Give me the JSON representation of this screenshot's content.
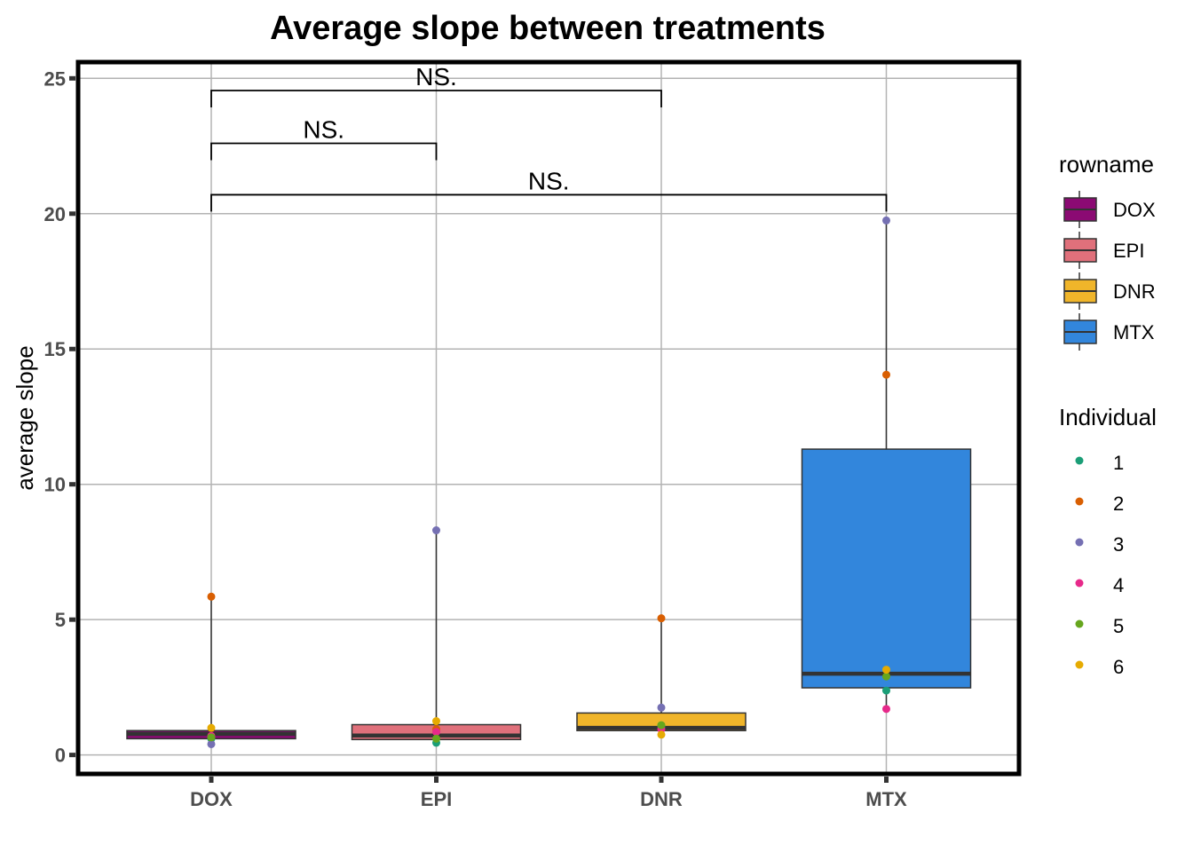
{
  "chart_data": {
    "type": "box",
    "title": "Average slope between treatments",
    "xlabel": "",
    "ylabel": "average slope",
    "ylim": [
      -0.7,
      25.6
    ],
    "yticks": [
      0,
      5,
      10,
      15,
      20,
      25
    ],
    "ytick_labels": [
      "0",
      "5",
      "10",
      "15",
      "20",
      "25"
    ],
    "categories": [
      "DOX",
      "EPI",
      "DNR",
      "MTX"
    ],
    "box_colors": [
      "#8b0a73",
      "#e0707b",
      "#f0b52a",
      "#3286dc"
    ],
    "boxes": [
      {
        "name": "DOX",
        "q1": 0.6,
        "median": 0.78,
        "q3": 0.9,
        "whisker_low": 0.4,
        "whisker_high": 5.85
      },
      {
        "name": "EPI",
        "q1": 0.57,
        "median": 0.72,
        "q3": 1.12,
        "whisker_low": 0.45,
        "whisker_high": 8.3
      },
      {
        "name": "DNR",
        "q1": 0.9,
        "median": 1.0,
        "q3": 1.55,
        "whisker_low": 0.75,
        "whisker_high": 5.05
      },
      {
        "name": "MTX",
        "q1": 2.48,
        "median": 3.0,
        "q3": 11.3,
        "whisker_low": 1.7,
        "whisker_high": 19.75
      }
    ],
    "individual_colors": [
      "#1b9e77",
      "#d95f02",
      "#7570b3",
      "#e7298a",
      "#66a61e",
      "#e6ab02"
    ],
    "points": [
      {
        "group": "DOX",
        "individual": "1",
        "value": 0.6
      },
      {
        "group": "DOX",
        "individual": "2",
        "value": 5.85
      },
      {
        "group": "DOX",
        "individual": "3",
        "value": 0.4
      },
      {
        "group": "DOX",
        "individual": "4",
        "value": 0.7
      },
      {
        "group": "DOX",
        "individual": "5",
        "value": 0.65
      },
      {
        "group": "DOX",
        "individual": "6",
        "value": 1.0
      },
      {
        "group": "EPI",
        "individual": "1",
        "value": 0.45
      },
      {
        "group": "EPI",
        "individual": "2",
        "value": 0.95
      },
      {
        "group": "EPI",
        "individual": "3",
        "value": 8.3
      },
      {
        "group": "EPI",
        "individual": "4",
        "value": 0.85
      },
      {
        "group": "EPI",
        "individual": "5",
        "value": 0.6
      },
      {
        "group": "EPI",
        "individual": "6",
        "value": 1.25
      },
      {
        "group": "DNR",
        "individual": "1",
        "value": 1.05
      },
      {
        "group": "DNR",
        "individual": "2",
        "value": 5.05
      },
      {
        "group": "DNR",
        "individual": "3",
        "value": 1.75
      },
      {
        "group": "DNR",
        "individual": "4",
        "value": 0.95
      },
      {
        "group": "DNR",
        "individual": "5",
        "value": 1.1
      },
      {
        "group": "DNR",
        "individual": "6",
        "value": 0.75
      },
      {
        "group": "MTX",
        "individual": "1",
        "value": 2.38
      },
      {
        "group": "MTX",
        "individual": "2",
        "value": 14.05
      },
      {
        "group": "MTX",
        "individual": "3",
        "value": 19.75
      },
      {
        "group": "MTX",
        "individual": "4",
        "value": 1.7
      },
      {
        "group": "MTX",
        "individual": "5",
        "value": 2.9
      },
      {
        "group": "MTX",
        "individual": "6",
        "value": 3.15
      }
    ],
    "comparisons": [
      {
        "from": "DOX",
        "to": "DNR",
        "y": 24.55,
        "label": "NS."
      },
      {
        "from": "DOX",
        "to": "EPI",
        "y": 22.6,
        "label": "NS."
      },
      {
        "from": "DOX",
        "to": "MTX",
        "y": 20.7,
        "label": "NS."
      }
    ],
    "legend_fill": {
      "title": "rowname",
      "entries": [
        "DOX",
        "EPI",
        "DNR",
        "MTX"
      ]
    },
    "legend_points": {
      "title": "Individual",
      "entries": [
        "1",
        "2",
        "3",
        "4",
        "5",
        "6"
      ]
    },
    "grid": true,
    "legend_position": "right"
  }
}
